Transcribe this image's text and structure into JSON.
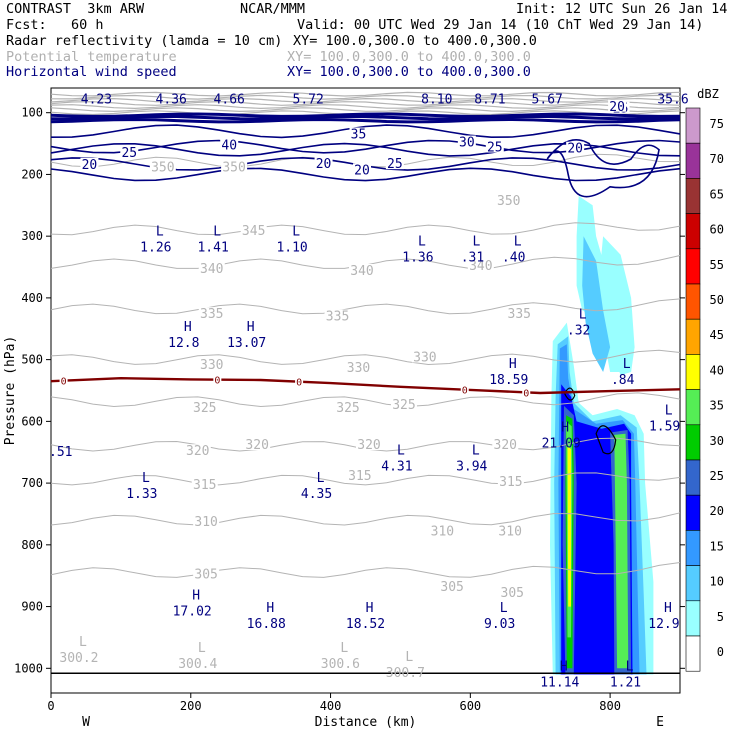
{
  "header": {
    "model": "CONTRAST  3km ARW",
    "org": "NCAR/MMM",
    "init": "Init: 12 UTC Sun 26 Jan 14",
    "fcst": "Fcst:   60 h",
    "valid": "Valid: 00 UTC Wed 29 Jan 14 (10 ChT Wed 29 Jan 14)",
    "field1": "Radar reflectivity (lamda = 10 cm)",
    "field1_xy": "XY= 100.0,300.0 to 400.0,300.0",
    "field2": "Potential temperature",
    "field2_xy": "XY= 100.0,300.0 to 400.0,300.0",
    "field3": "Horizontal wind speed",
    "field3_xy": "XY= 100.0,300.0 to 400.0,300.0"
  },
  "chart_data": {
    "type": "cross-section",
    "xlabel": "Distance (km)",
    "ylabel": "Pressure (hPa)",
    "xlim": [
      0,
      900
    ],
    "ylim": [
      1040,
      60
    ],
    "x_ticks": [
      "0",
      "200",
      "400",
      "600",
      "800"
    ],
    "x_tick_values": [
      0,
      200,
      400,
      600,
      800
    ],
    "y_ticks": [
      "100",
      "200",
      "300",
      "400",
      "500",
      "600",
      "700",
      "800",
      "900",
      "1000"
    ],
    "y_tick_values": [
      100,
      200,
      300,
      400,
      500,
      600,
      700,
      800,
      900,
      1000
    ],
    "west_label": "W",
    "east_label": "E",
    "colorbar": {
      "unit": "dBZ",
      "levels": [
        "0",
        "5",
        "10",
        "15",
        "20",
        "25",
        "30",
        "35",
        "40",
        "45",
        "50",
        "55",
        "60",
        "65",
        "70",
        "75"
      ],
      "colors": [
        "#ffffff",
        "#99ffff",
        "#55ccff",
        "#3399ff",
        "#0000ff",
        "#3366cc",
        "#00cc00",
        "#55ee55",
        "#ffff00",
        "#ffa500",
        "#ff5500",
        "#ff0000",
        "#cc0000",
        "#993333",
        "#993399",
        "#cc99cc"
      ]
    },
    "colors": {
      "theta": "#b4b4b4",
      "wind": "#000080",
      "freezing": "#800000",
      "ground": "#000000"
    },
    "theta_levels": [
      {
        "label": "350",
        "p": 180
      },
      {
        "label": "345",
        "p": 290
      },
      {
        "label": "340",
        "p": 345
      },
      {
        "label": "335",
        "p": 418
      },
      {
        "label": "330",
        "p": 500
      },
      {
        "label": "325",
        "p": 568
      },
      {
        "label": "320",
        "p": 640
      },
      {
        "label": "315",
        "p": 695
      },
      {
        "label": "310",
        "p": 760
      },
      {
        "label": "305",
        "p": 845
      }
    ],
    "theta_labels": [
      {
        "text": "350",
        "x": 160,
        "p": 190
      },
      {
        "text": "350",
        "x": 262,
        "p": 190
      },
      {
        "text": "350",
        "x": 655,
        "p": 245
      },
      {
        "text": "345",
        "x": 290,
        "p": 293
      },
      {
        "text": "340",
        "x": 230,
        "p": 355
      },
      {
        "text": "340",
        "x": 445,
        "p": 358
      },
      {
        "text": "340",
        "x": 615,
        "p": 350
      },
      {
        "text": "335",
        "x": 230,
        "p": 428
      },
      {
        "text": "335",
        "x": 410,
        "p": 432
      },
      {
        "text": "335",
        "x": 670,
        "p": 428
      },
      {
        "text": "330",
        "x": 230,
        "p": 510
      },
      {
        "text": "330",
        "x": 440,
        "p": 515
      },
      {
        "text": "330",
        "x": 535,
        "p": 498
      },
      {
        "text": "325",
        "x": 220,
        "p": 580
      },
      {
        "text": "325",
        "x": 425,
        "p": 580
      },
      {
        "text": "325",
        "x": 505,
        "p": 575
      },
      {
        "text": "320",
        "x": 210,
        "p": 650
      },
      {
        "text": "320",
        "x": 295,
        "p": 640
      },
      {
        "text": "320",
        "x": 455,
        "p": 640
      },
      {
        "text": "320",
        "x": 650,
        "p": 640
      },
      {
        "text": "315",
        "x": 220,
        "p": 705
      },
      {
        "text": "315",
        "x": 442,
        "p": 690
      },
      {
        "text": "315",
        "x": 658,
        "p": 700
      },
      {
        "text": "310",
        "x": 222,
        "p": 765
      },
      {
        "text": "310",
        "x": 560,
        "p": 780
      },
      {
        "text": "310",
        "x": 657,
        "p": 780
      },
      {
        "text": "305",
        "x": 222,
        "p": 850
      },
      {
        "text": "305",
        "x": 574,
        "p": 870
      },
      {
        "text": "305",
        "x": 660,
        "p": 880
      }
    ],
    "wind_contours": [
      {
        "label": "40",
        "p": 155
      },
      {
        "label": "35",
        "p": 130
      },
      {
        "label": "30",
        "p": 160
      },
      {
        "label": "25",
        "p": 183
      },
      {
        "label": "20",
        "p": 200
      }
    ],
    "wind_labels": [
      {
        "text": "40",
        "x": 255,
        "p": 155
      },
      {
        "text": "35",
        "x": 440,
        "p": 137
      },
      {
        "text": "30",
        "x": 595,
        "p": 150
      },
      {
        "text": "25",
        "x": 112,
        "p": 167
      },
      {
        "text": "25",
        "x": 635,
        "p": 158
      },
      {
        "text": "25",
        "x": 815,
        "p": 95
      },
      {
        "text": "20",
        "x": 55,
        "p": 186
      },
      {
        "text": "20",
        "x": 390,
        "p": 185
      },
      {
        "text": "20",
        "x": 445,
        "p": 195
      },
      {
        "text": "20",
        "x": 750,
        "p": 160
      },
      {
        "text": "20",
        "x": 810,
        "p": 92
      },
      {
        "text": "25",
        "x": 492,
        "p": 185
      }
    ],
    "freezing_level": {
      "label": "0",
      "p": [
        535,
        530,
        532,
        533,
        538,
        544,
        549,
        554,
        551,
        548
      ]
    },
    "freezing_labels": [
      {
        "text": "0",
        "x": 18
      },
      {
        "text": "0",
        "x": 238
      },
      {
        "text": "0",
        "x": 355
      },
      {
        "text": "0",
        "x": 592
      },
      {
        "text": "0",
        "x": 680
      }
    ],
    "top_values": [
      {
        "text": "4.23",
        "x": 65
      },
      {
        "text": "4.36",
        "x": 172
      },
      {
        "text": "4.66",
        "x": 255
      },
      {
        "text": "5.72",
        "x": 368
      },
      {
        "text": "8.10",
        "x": 552
      },
      {
        "text": "8.71",
        "x": 628
      },
      {
        "text": "5.67",
        "x": 710
      },
      {
        "text": "35.6",
        "x": 890
      }
    ],
    "extrema": [
      {
        "type": "L",
        "value": "1.26",
        "x": 150,
        "p": 305
      },
      {
        "type": "L",
        "value": "1.41",
        "x": 232,
        "p": 305
      },
      {
        "type": "L",
        "value": "1.10",
        "x": 345,
        "p": 305
      },
      {
        "type": "L",
        "value": "1.36",
        "x": 525,
        "p": 322
      },
      {
        "type": "L",
        "value": ".31",
        "x": 603,
        "p": 322
      },
      {
        "type": "L",
        "value": ".40",
        "x": 662,
        "p": 322
      },
      {
        "type": "H",
        "value": "12.8",
        "x": 190,
        "p": 460
      },
      {
        "type": "H",
        "value": "13.07",
        "x": 280,
        "p": 460
      },
      {
        "type": "L",
        "value": ".32",
        "x": 755,
        "p": 440
      },
      {
        "type": "H",
        "value": "18.59",
        "x": 655,
        "p": 520
      },
      {
        "type": "L",
        "value": ".84",
        "x": 818,
        "p": 520
      },
      {
        "type": "L",
        "value": "1.59",
        "x": 878,
        "p": 595
      },
      {
        "type": "H",
        "value": "21.09",
        "x": 730,
        "p": 623
      },
      {
        "type": "L",
        "value": "4.31",
        "x": 495,
        "p": 660
      },
      {
        "type": "L",
        "value": "3.94",
        "x": 602,
        "p": 660
      },
      {
        "type": "L",
        "value": "1.33",
        "x": 130,
        "p": 705
      },
      {
        "type": "L",
        "value": "4.35",
        "x": 380,
        "p": 705
      },
      {
        "type": "H",
        "value": "17.02",
        "x": 202,
        "p": 895
      },
      {
        "type": "H",
        "value": "16.88",
        "x": 308,
        "p": 915
      },
      {
        "type": "H",
        "value": "18.52",
        "x": 450,
        "p": 915
      },
      {
        "type": "L",
        "value": "9.03",
        "x": 642,
        "p": 915
      },
      {
        "type": "H",
        "value": "12.9",
        "x": 877,
        "p": 915
      },
      {
        "type": "H",
        "value": "11.14",
        "x": 728,
        "p": 1010
      },
      {
        "type": "L",
        "value": "1.21",
        "x": 822,
        "p": 1010
      },
      {
        "type": "L",
        "value": "300.2",
        "x": 40,
        "p": 970,
        "field": "theta"
      },
      {
        "type": "L",
        "value": "300.4",
        "x": 210,
        "p": 980,
        "field": "theta"
      },
      {
        "type": "L",
        "value": "300.6",
        "x": 414,
        "p": 980,
        "field": "theta"
      },
      {
        "type": "L",
        "value": "300.7",
        "x": 507,
        "p": 995,
        "field": "theta"
      }
    ],
    "edge_label": ".51"
  }
}
